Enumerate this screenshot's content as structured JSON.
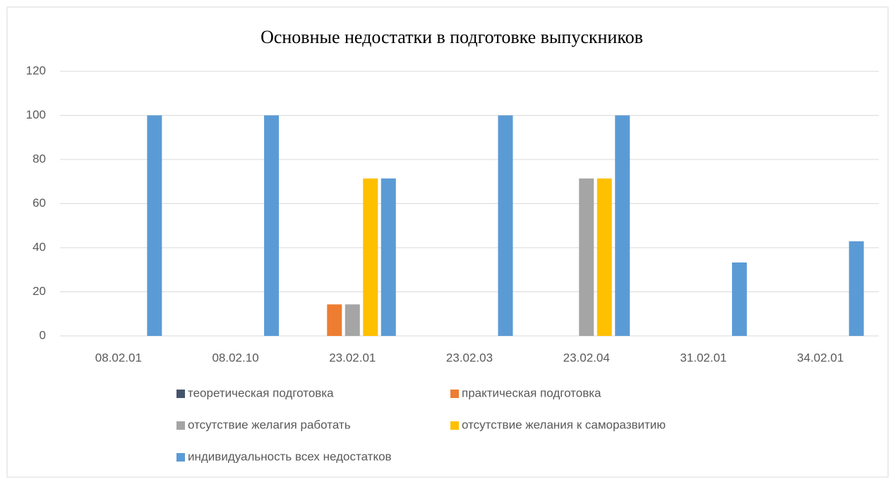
{
  "chart_data": {
    "type": "bar",
    "title": "Основные недостатки в подготовке выпускников",
    "categories": [
      "08.02.01",
      "08.02.10",
      "23.02.01",
      "23.02.03",
      "23.02.04",
      "31.02.01",
      "34.02.01"
    ],
    "series": [
      {
        "name": "теоретическая подготовка",
        "color": "#44546a",
        "values": [
          0,
          0,
          0,
          0,
          0,
          0,
          0
        ]
      },
      {
        "name": "практическая подготовка",
        "color": "#ed7d31",
        "values": [
          0,
          0,
          14.3,
          0,
          0,
          0,
          0
        ]
      },
      {
        "name": "отсутствие желагия работать",
        "color": "#a5a5a5",
        "values": [
          0,
          0,
          14.3,
          0,
          71.4,
          0,
          0
        ]
      },
      {
        "name": "отсутствие желания к саморазвитию",
        "color": "#ffc000",
        "values": [
          0,
          0,
          71.4,
          0,
          71.4,
          0,
          0
        ]
      },
      {
        "name": "индивидуальность всех недостатков",
        "color": "#5b9bd5",
        "values": [
          100,
          100,
          71.4,
          100,
          100,
          33.3,
          42.9
        ]
      }
    ],
    "ylim": [
      0,
      120
    ],
    "yticks": [
      0,
      20,
      40,
      60,
      80,
      100,
      120
    ],
    "grid": true
  }
}
